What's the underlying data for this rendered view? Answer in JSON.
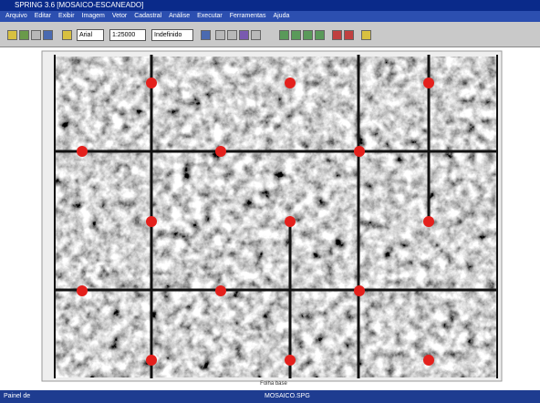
{
  "window": {
    "title": "SPRING 3.6 [MOSAICO-ESCANEADO]"
  },
  "menu": [
    "Arquivo",
    "Editar",
    "Exibir",
    "Imagem",
    "Vetor",
    "Cadastral",
    "Análise",
    "Executar",
    "Ferramentas",
    "Ajuda"
  ],
  "toolbar": {
    "inputs": [
      "Arial",
      "1:25000",
      "Indefinido"
    ]
  },
  "map": {
    "caption": "Folha base"
  },
  "taskbar": {
    "start": "Painel de",
    "status": "MOSAICO.SPG"
  }
}
